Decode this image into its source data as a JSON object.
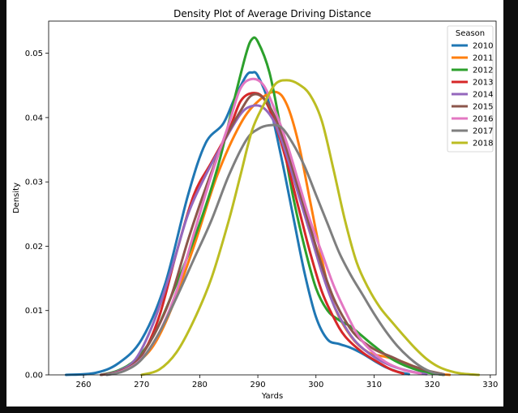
{
  "chart_data": {
    "type": "line",
    "title": "Density Plot of Average Driving Distance",
    "xlabel": "Yards",
    "ylabel": "Density",
    "xlim": [
      254,
      331
    ],
    "ylim": [
      0,
      0.055
    ],
    "x_ticks": [
      260,
      270,
      280,
      290,
      300,
      310,
      320,
      330
    ],
    "y_ticks": [
      0.0,
      0.01,
      0.02,
      0.03,
      0.04,
      0.05
    ],
    "x_tick_labels": [
      "260",
      "270",
      "280",
      "290",
      "300",
      "310",
      "320",
      "330"
    ],
    "y_tick_labels": [
      "0.00",
      "0.01",
      "0.02",
      "0.03",
      "0.04",
      "0.05"
    ],
    "grid": false,
    "legend": {
      "title": "Season",
      "placement": "top-right"
    },
    "series": [
      {
        "name": "2010",
        "color": "#1f77b4",
        "points": [
          [
            257,
            0
          ],
          [
            262,
            0.0003
          ],
          [
            266,
            0.0018
          ],
          [
            270,
            0.0055
          ],
          [
            274,
            0.014
          ],
          [
            278,
            0.028
          ],
          [
            281,
            0.036
          ],
          [
            284,
            0.039
          ],
          [
            286,
            0.043
          ],
          [
            288,
            0.0465
          ],
          [
            289,
            0.047
          ],
          [
            290,
            0.0465
          ],
          [
            292,
            0.042
          ],
          [
            294,
            0.034
          ],
          [
            296,
            0.025
          ],
          [
            298,
            0.016
          ],
          [
            300,
            0.009
          ],
          [
            302,
            0.0055
          ],
          [
            304,
            0.0048
          ],
          [
            306,
            0.0042
          ],
          [
            308,
            0.0033
          ],
          [
            310,
            0.0022
          ],
          [
            312,
            0.0012
          ],
          [
            314,
            0.0005
          ],
          [
            316,
            0.0001
          ]
        ]
      },
      {
        "name": "2011",
        "color": "#ff7f0e",
        "points": [
          [
            263,
            0
          ],
          [
            266,
            0.0005
          ],
          [
            269,
            0.0018
          ],
          [
            272,
            0.0045
          ],
          [
            275,
            0.01
          ],
          [
            279,
            0.02
          ],
          [
            283,
            0.031
          ],
          [
            287,
            0.039
          ],
          [
            290,
            0.0425
          ],
          [
            293,
            0.044
          ],
          [
            295,
            0.042
          ],
          [
            297,
            0.036
          ],
          [
            299,
            0.027
          ],
          [
            301,
            0.018
          ],
          [
            303,
            0.011
          ],
          [
            306,
            0.006
          ],
          [
            309,
            0.0035
          ],
          [
            312,
            0.0028
          ],
          [
            315,
            0.002
          ],
          [
            318,
            0.0009
          ],
          [
            321,
            0.0002
          ],
          [
            323,
            0
          ]
        ]
      },
      {
        "name": "2012",
        "color": "#2ca02c",
        "points": [
          [
            263,
            0
          ],
          [
            266,
            0.0007
          ],
          [
            269,
            0.0024
          ],
          [
            272,
            0.006
          ],
          [
            275,
            0.012
          ],
          [
            279,
            0.021
          ],
          [
            283,
            0.032
          ],
          [
            286,
            0.043
          ],
          [
            288,
            0.05
          ],
          [
            289,
            0.0522
          ],
          [
            290,
            0.0518
          ],
          [
            292,
            0.047
          ],
          [
            294,
            0.038
          ],
          [
            296,
            0.028
          ],
          [
            298,
            0.02
          ],
          [
            300,
            0.0135
          ],
          [
            302,
            0.01
          ],
          [
            304,
            0.0085
          ],
          [
            306,
            0.0075
          ],
          [
            308,
            0.006
          ],
          [
            310,
            0.0045
          ],
          [
            313,
            0.0025
          ],
          [
            316,
            0.0012
          ],
          [
            319,
            0.0004
          ],
          [
            322,
            0
          ]
        ]
      },
      {
        "name": "2013",
        "color": "#d62728",
        "points": [
          [
            264,
            0
          ],
          [
            267,
            0.0008
          ],
          [
            270,
            0.003
          ],
          [
            273,
            0.009
          ],
          [
            276,
            0.019
          ],
          [
            279,
            0.028
          ],
          [
            282,
            0.033
          ],
          [
            285,
            0.038
          ],
          [
            287,
            0.0425
          ],
          [
            289,
            0.0438
          ],
          [
            291,
            0.043
          ],
          [
            293,
            0.039
          ],
          [
            295,
            0.033
          ],
          [
            297,
            0.026
          ],
          [
            299,
            0.019
          ],
          [
            301,
            0.013
          ],
          [
            303,
            0.009
          ],
          [
            305,
            0.006
          ],
          [
            308,
            0.0035
          ],
          [
            311,
            0.0018
          ],
          [
            313,
            0.0008
          ],
          [
            315,
            0.0002
          ]
        ]
      },
      {
        "name": "2014",
        "color": "#9467bd",
        "points": [
          [
            263,
            0
          ],
          [
            266,
            0.0006
          ],
          [
            269,
            0.0025
          ],
          [
            272,
            0.008
          ],
          [
            275,
            0.016
          ],
          [
            278,
            0.025
          ],
          [
            281,
            0.031
          ],
          [
            284,
            0.036
          ],
          [
            287,
            0.0405
          ],
          [
            289,
            0.0418
          ],
          [
            291,
            0.0415
          ],
          [
            293,
            0.039
          ],
          [
            295,
            0.034
          ],
          [
            297,
            0.028
          ],
          [
            299,
            0.022
          ],
          [
            301,
            0.016
          ],
          [
            303,
            0.011
          ],
          [
            305,
            0.0075
          ],
          [
            307,
            0.005
          ],
          [
            310,
            0.0028
          ],
          [
            313,
            0.0014
          ],
          [
            316,
            0.0006
          ],
          [
            319,
            0.0001
          ]
        ]
      },
      {
        "name": "2015",
        "color": "#8c564b",
        "points": [
          [
            263,
            0
          ],
          [
            266,
            0.0005
          ],
          [
            269,
            0.002
          ],
          [
            272,
            0.006
          ],
          [
            275,
            0.012
          ],
          [
            278,
            0.021
          ],
          [
            281,
            0.029
          ],
          [
            284,
            0.036
          ],
          [
            287,
            0.041
          ],
          [
            289,
            0.0435
          ],
          [
            291,
            0.043
          ],
          [
            293,
            0.04
          ],
          [
            295,
            0.035
          ],
          [
            297,
            0.029
          ],
          [
            299,
            0.023
          ],
          [
            301,
            0.017
          ],
          [
            303,
            0.012
          ],
          [
            305,
            0.0085
          ],
          [
            307,
            0.006
          ],
          [
            310,
            0.004
          ],
          [
            313,
            0.0028
          ],
          [
            316,
            0.0016
          ],
          [
            319,
            0.0007
          ],
          [
            322,
            0.0001
          ]
        ]
      },
      {
        "name": "2016",
        "color": "#e377c2",
        "points": [
          [
            264,
            0
          ],
          [
            267,
            0.0007
          ],
          [
            270,
            0.0025
          ],
          [
            273,
            0.0065
          ],
          [
            276,
            0.013
          ],
          [
            279,
            0.022
          ],
          [
            282,
            0.031
          ],
          [
            285,
            0.039
          ],
          [
            287,
            0.0445
          ],
          [
            289,
            0.046
          ],
          [
            291,
            0.045
          ],
          [
            293,
            0.041
          ],
          [
            295,
            0.036
          ],
          [
            297,
            0.03
          ],
          [
            299,
            0.024
          ],
          [
            301,
            0.019
          ],
          [
            303,
            0.014
          ],
          [
            305,
            0.01
          ],
          [
            307,
            0.0065
          ],
          [
            309,
            0.0042
          ],
          [
            312,
            0.002
          ],
          [
            315,
            0.0008
          ],
          [
            318,
            0.0002
          ]
        ]
      },
      {
        "name": "2017",
        "color": "#7f7f7f",
        "points": [
          [
            264,
            0
          ],
          [
            267,
            0.0006
          ],
          [
            270,
            0.0024
          ],
          [
            273,
            0.0065
          ],
          [
            276,
            0.012
          ],
          [
            279,
            0.018
          ],
          [
            282,
            0.024
          ],
          [
            285,
            0.031
          ],
          [
            288,
            0.0365
          ],
          [
            290,
            0.0382
          ],
          [
            292,
            0.0388
          ],
          [
            294,
            0.0385
          ],
          [
            296,
            0.036
          ],
          [
            298,
            0.0325
          ],
          [
            300,
            0.028
          ],
          [
            302,
            0.0235
          ],
          [
            304,
            0.019
          ],
          [
            306,
            0.0155
          ],
          [
            308,
            0.0125
          ],
          [
            310,
            0.0095
          ],
          [
            312,
            0.0068
          ],
          [
            314,
            0.0045
          ],
          [
            316,
            0.0027
          ],
          [
            318,
            0.0013
          ],
          [
            320,
            0.0004
          ],
          [
            322,
            0
          ]
        ]
      },
      {
        "name": "2018",
        "color": "#bcbd22",
        "points": [
          [
            270,
            0
          ],
          [
            273,
            0.0008
          ],
          [
            276,
            0.0035
          ],
          [
            279,
            0.0085
          ],
          [
            282,
            0.015
          ],
          [
            285,
            0.024
          ],
          [
            287,
            0.031
          ],
          [
            289,
            0.038
          ],
          [
            291,
            0.042
          ],
          [
            293,
            0.0452
          ],
          [
            295,
            0.0458
          ],
          [
            297,
            0.0452
          ],
          [
            299,
            0.0435
          ],
          [
            301,
            0.0395
          ],
          [
            303,
            0.032
          ],
          [
            305,
            0.024
          ],
          [
            307,
            0.0175
          ],
          [
            309,
            0.0135
          ],
          [
            311,
            0.0105
          ],
          [
            313,
            0.0083
          ],
          [
            315,
            0.0062
          ],
          [
            317,
            0.0042
          ],
          [
            319,
            0.0025
          ],
          [
            321,
            0.0013
          ],
          [
            323,
            0.0006
          ],
          [
            325,
            0.0002
          ],
          [
            328,
            0
          ]
        ]
      }
    ]
  }
}
